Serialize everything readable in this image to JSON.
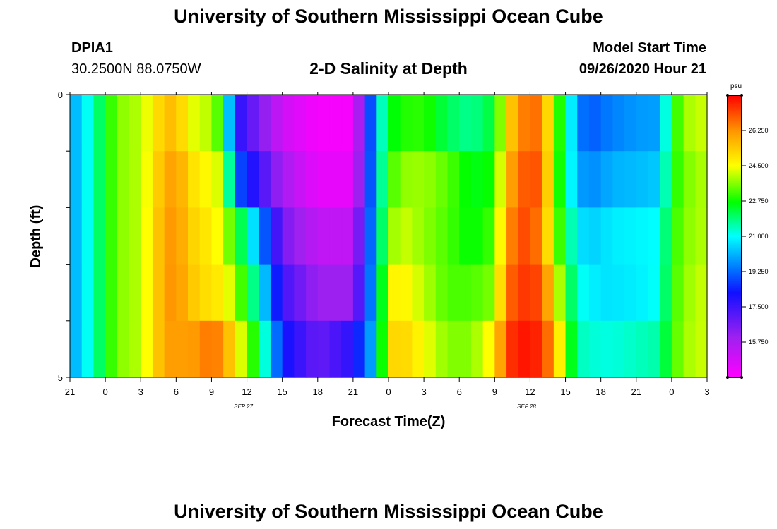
{
  "header": {
    "title": "University of Southern Mississippi Ocean Cube",
    "station_id": "DPIA1",
    "station_coords": "30.2500N 88.0750W",
    "plot_title": "2-D Salinity at Depth",
    "model_start_label": "Model Start Time",
    "model_start_value": "09/26/2020 Hour 21"
  },
  "footer": {
    "title": "University of Southern Mississippi Ocean Cube"
  },
  "chart_data": {
    "type": "heatmap",
    "title": "2-D Salinity at Depth",
    "xlabel": "Forecast Time(Z)",
    "ylabel": "Depth (ft)",
    "x_tick_labels": [
      "21",
      "0",
      "3",
      "6",
      "9",
      "12",
      "15",
      "18",
      "21",
      "0",
      "3",
      "6",
      "9",
      "12",
      "15",
      "18",
      "21",
      "0",
      "3"
    ],
    "x_hours": [
      0,
      3,
      6,
      9,
      12,
      15,
      18,
      21,
      24,
      27,
      30,
      33,
      36,
      39,
      42,
      45,
      48,
      51,
      54
    ],
    "x_range_hours": [
      0,
      54
    ],
    "date_labels": [
      {
        "text": "SEP 27",
        "hour": 15
      },
      {
        "text": "SEP 28",
        "hour": 39
      }
    ],
    "y_tick_labels": [
      "0",
      "5"
    ],
    "ylim_ft": [
      0,
      5
    ],
    "colorbar": {
      "unit": "psu",
      "tick_labels": [
        "26.250",
        "24.500",
        "22.750",
        "21.000",
        "19.250",
        "17.500",
        "15.750"
      ],
      "tick_values": [
        26.25,
        24.5,
        22.75,
        21.0,
        19.25,
        17.5,
        15.75
      ],
      "range": [
        14.0,
        28.0
      ]
    },
    "depth_rows_ft": [
      0.5,
      1.5,
      2.5,
      3.5,
      4.5
    ],
    "salinity_hours": [
      0,
      2,
      4,
      6,
      8,
      9,
      10,
      11,
      12,
      13,
      14,
      15,
      16,
      18,
      21,
      24,
      26,
      27,
      28,
      30,
      32,
      34,
      36,
      37,
      38,
      39,
      40,
      41,
      42,
      43,
      44,
      45,
      46,
      48,
      50,
      51,
      52,
      54
    ],
    "salinity_ft": [
      [
        19.8,
        21.5,
        23.6,
        24.0,
        25.5,
        25.6,
        24.6,
        24.0,
        24.1,
        22.5,
        18.0,
        17.2,
        16.5,
        15.0,
        14.2,
        14.2,
        20.5,
        22.4,
        22.9,
        23.0,
        22.1,
        21.7,
        22.4,
        24.8,
        26.2,
        26.8,
        26.5,
        23.8,
        22.0,
        19.6,
        19.0,
        19.3,
        19.5,
        19.8,
        19.9,
        22.5,
        23.8,
        24.2
      ],
      [
        19.8,
        21.5,
        23.6,
        24.0,
        25.8,
        26.2,
        25.2,
        24.7,
        24.5,
        24.0,
        19.3,
        18.3,
        17.5,
        15.8,
        14.5,
        14.5,
        20.5,
        22.9,
        23.7,
        23.8,
        23.3,
        22.5,
        22.8,
        25.6,
        26.6,
        27.2,
        26.8,
        23.8,
        21.8,
        20.0,
        19.6,
        19.8,
        20.1,
        20.2,
        20.4,
        22.6,
        23.5,
        24.0
      ],
      [
        19.8,
        21.5,
        23.6,
        24.0,
        26.0,
        26.3,
        25.4,
        25.0,
        24.8,
        24.2,
        22.8,
        21.5,
        19.8,
        16.6,
        15.3,
        15.3,
        20.5,
        23.5,
        24.2,
        23.7,
        23.2,
        22.6,
        23.2,
        26.0,
        27.0,
        27.2,
        26.2,
        24.0,
        22.2,
        20.8,
        20.4,
        20.6,
        20.8,
        20.9,
        21.0,
        22.8,
        23.6,
        24.0
      ],
      [
        19.8,
        21.5,
        23.6,
        24.0,
        26.0,
        26.4,
        25.5,
        25.2,
        24.9,
        24.8,
        23.8,
        22.5,
        21.1,
        17.4,
        16.0,
        16.0,
        20.5,
        24.5,
        24.8,
        24.0,
        23.2,
        23.2,
        23.6,
        26.5,
        27.3,
        27.4,
        27.0,
        25.0,
        22.8,
        21.2,
        20.9,
        20.7,
        20.7,
        20.8,
        21.1,
        22.9,
        23.7,
        24.2
      ],
      [
        19.8,
        21.5,
        23.6,
        24.0,
        26.0,
        26.2,
        26.0,
        26.3,
        26.7,
        26.2,
        24.8,
        23.7,
        22.2,
        18.3,
        16.8,
        17.8,
        20.5,
        25.0,
        25.3,
        24.5,
        23.6,
        23.6,
        24.8,
        27.2,
        27.7,
        27.8,
        27.4,
        26.0,
        23.5,
        21.5,
        21.3,
        21.2,
        21.2,
        21.4,
        21.6,
        23.0,
        23.8,
        24.2
      ]
    ]
  }
}
